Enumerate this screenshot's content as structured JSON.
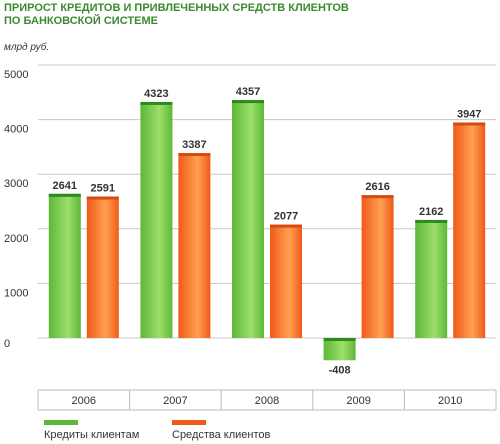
{
  "title_line1": "ПРИРОСТ КРЕДИТОВ И ПРИВЛЕЧЕННЫХ СРЕДСТВ КЛИЕНТОВ",
  "title_line2": "ПО БАНКОВСКОЙ СИСТЕМЕ",
  "colors": {
    "green": "#5cb838",
    "green_light": "#9ede6a",
    "green_top": "#2e8a1e",
    "orange": "#f05a18",
    "orange_light": "#ffa050",
    "orange_top": "#d44a10",
    "grid": "#c8c8c8",
    "text": "#333333",
    "title": "#3a8a2e"
  },
  "chart_data": {
    "type": "bar",
    "ylabel": "млрд руб.",
    "ylim": [
      -800,
      5000
    ],
    "yticks": [
      0,
      1000,
      2000,
      3000,
      4000,
      5000
    ],
    "categories": [
      "2006",
      "2007",
      "2008",
      "2009",
      "2010"
    ],
    "series": [
      {
        "name": "Кредиты клиентам",
        "values": [
          2641,
          4323,
          4357,
          -408,
          2162
        ]
      },
      {
        "name": "Средства клиентов",
        "values": [
          2591,
          3387,
          2077,
          2616,
          3947
        ]
      }
    ],
    "grid": true,
    "legend_position": "bottom-left"
  }
}
